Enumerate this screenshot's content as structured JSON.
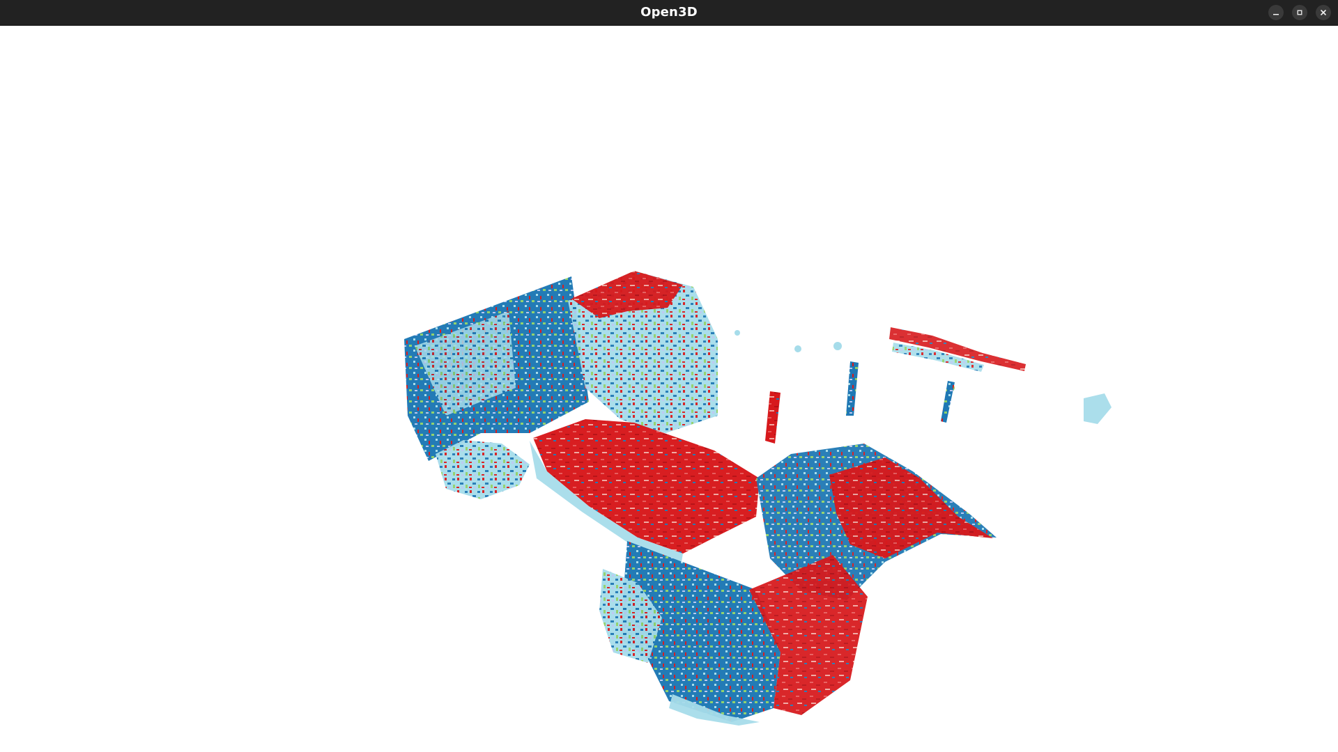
{
  "window": {
    "title": "Open3D",
    "controls": [
      "minimize-icon",
      "restore-icon",
      "close-icon"
    ]
  },
  "viewport": {
    "scene": "point-cloud",
    "palette": {
      "red": "#d7191c",
      "dark_blue": "#1f78b4",
      "light_blue": "#a6dcea",
      "lavender": "#b9c7f0",
      "green": "#8fd16a",
      "yellow": "#c9cf3a"
    }
  }
}
